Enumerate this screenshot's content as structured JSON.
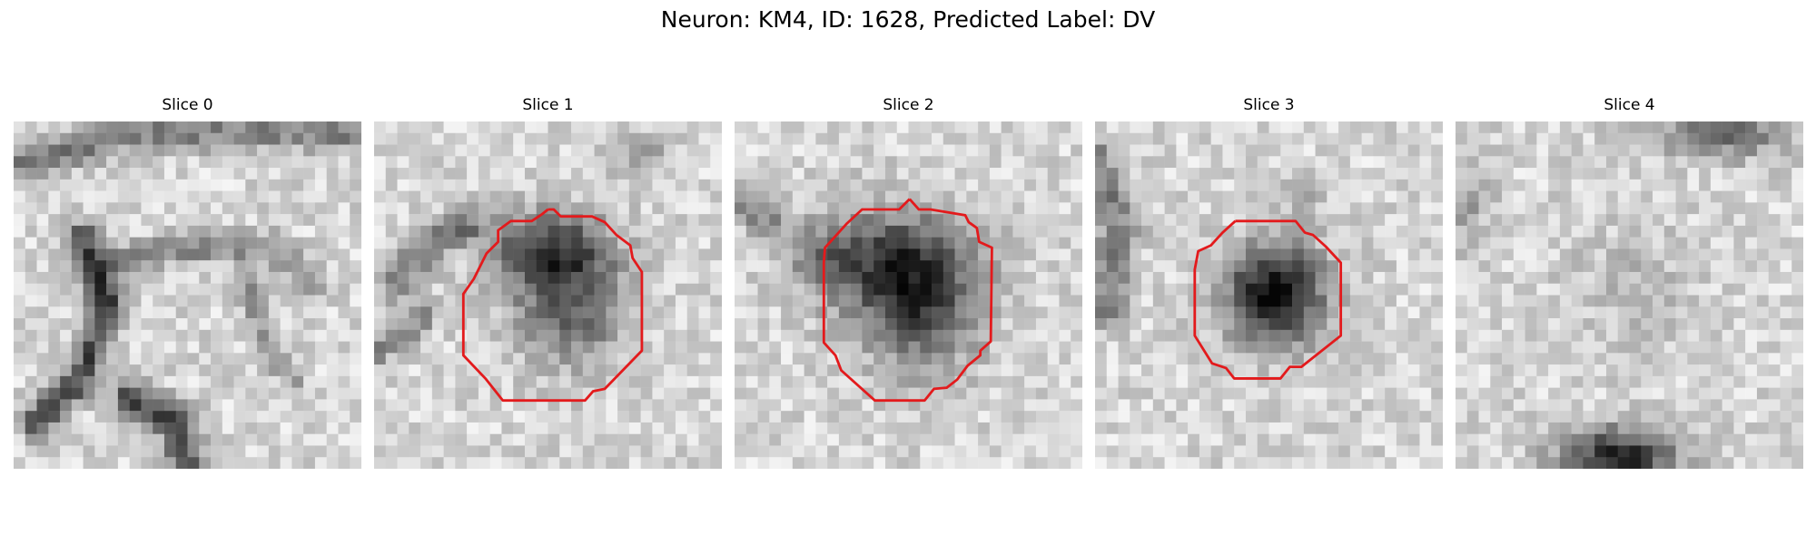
{
  "figure": {
    "title": "Neuron: KM4, ID: 1628, Predicted Label: DV"
  },
  "colors": {
    "outline": "#e31a1c",
    "background": "#ffffff"
  },
  "panels": [
    {
      "title": "Slice 0",
      "has_outline": false
    },
    {
      "title": "Slice 1",
      "has_outline": true
    },
    {
      "title": "Slice 2",
      "has_outline": true
    },
    {
      "title": "Slice 3",
      "has_outline": true
    },
    {
      "title": "Slice 4",
      "has_outline": false
    }
  ]
}
